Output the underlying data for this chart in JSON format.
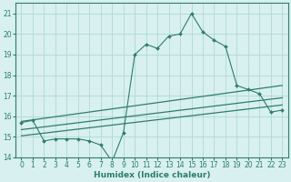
{
  "x": [
    0,
    1,
    2,
    3,
    4,
    5,
    6,
    7,
    8,
    9,
    10,
    11,
    12,
    13,
    14,
    15,
    16,
    17,
    18,
    19,
    20,
    21,
    22,
    23
  ],
  "y_main": [
    15.7,
    15.8,
    14.8,
    14.9,
    14.9,
    14.9,
    14.8,
    14.6,
    13.8,
    15.2,
    19.0,
    19.5,
    19.3,
    19.9,
    20.0,
    21.0,
    20.1,
    19.7,
    19.4,
    17.5,
    17.3,
    17.1,
    16.2,
    16.3
  ],
  "line1_x": [
    0,
    23
  ],
  "line1_y": [
    15.75,
    17.5
  ],
  "line2_x": [
    0,
    23
  ],
  "line2_y": [
    15.35,
    16.9
  ],
  "line3_x": [
    0,
    23
  ],
  "line3_y": [
    15.05,
    16.55
  ],
  "line_color": "#2e7d6e",
  "bg_color": "#d8f0f0",
  "grid_color": "#b0d8d8",
  "xlabel": "Humidex (Indice chaleur)",
  "ylim": [
    14,
    21.5
  ],
  "xlim": [
    -0.5,
    23.5
  ],
  "yticks": [
    14,
    15,
    16,
    17,
    18,
    19,
    20,
    21
  ],
  "xticks": [
    0,
    1,
    2,
    3,
    4,
    5,
    6,
    7,
    8,
    9,
    10,
    11,
    12,
    13,
    14,
    15,
    16,
    17,
    18,
    19,
    20,
    21,
    22,
    23
  ]
}
